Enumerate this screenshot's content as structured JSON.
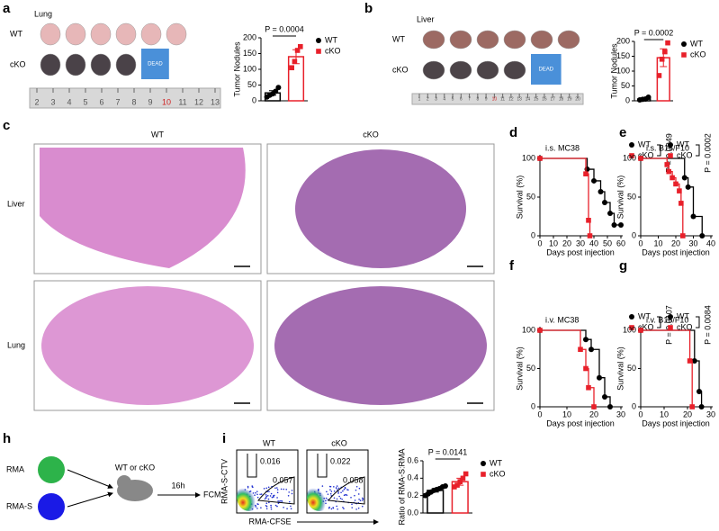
{
  "panel_labels": [
    "a",
    "b",
    "c",
    "d",
    "e",
    "f",
    "g",
    "h",
    "i"
  ],
  "photo_a": {
    "tissue": "Lung",
    "rows": [
      "WT",
      "cKO"
    ],
    "dead": "DEAD",
    "ruler": [
      "2",
      "3",
      "4",
      "5",
      "6",
      "7",
      "8",
      "9",
      "10",
      "11",
      "12",
      "13"
    ]
  },
  "photo_b": {
    "tissue": "Liver",
    "rows": [
      "WT",
      "cKO"
    ],
    "dead": "DEAD",
    "ruler": [
      "1",
      "2",
      "3",
      "4",
      "5",
      "6",
      "7",
      "8",
      "9",
      "10",
      "11",
      "12",
      "13",
      "14",
      "15",
      "16",
      "17",
      "18",
      "19",
      "20"
    ]
  },
  "histology": {
    "columns": [
      "WT",
      "cKO"
    ],
    "rows": [
      "Liver",
      "Lung"
    ]
  },
  "scheme": {
    "cells": [
      "RMA",
      "RMA-S"
    ],
    "mouse": "WT or cKO",
    "time": "16h",
    "readout": "FCM"
  },
  "flow": {
    "ylabel": "RMA-S-CTV",
    "xlabel": "RMA-CFSE",
    "panels": [
      {
        "title": "WT",
        "gates": [
          "0.016",
          "0.057"
        ]
      },
      {
        "title": "cKO",
        "gates": [
          "0.022",
          "0.058"
        ]
      }
    ]
  },
  "chart_data": [
    {
      "type": "bar",
      "ylabel": "Tumor Nodules",
      "annotation": "P = 0.0004",
      "ylim": [
        0,
        200
      ],
      "yticks": [
        0,
        50,
        100,
        150,
        200
      ],
      "series": [
        {
          "name": "WT",
          "color": "#000000",
          "marker": "circle",
          "values": [
            25
          ],
          "error": [
            7
          ],
          "points": [
            12,
            18,
            22,
            30,
            42
          ]
        },
        {
          "name": "cKO",
          "color": "#e8202a",
          "marker": "square",
          "values": [
            140
          ],
          "error": [
            22
          ],
          "points": [
            105,
            125,
            160,
            172
          ]
        }
      ]
    },
    {
      "type": "bar",
      "ylabel": "Tumor Nodules",
      "annotation": "P = 0.0002",
      "ylim": [
        0,
        200
      ],
      "yticks": [
        0,
        50,
        100,
        150,
        200
      ],
      "series": [
        {
          "name": "WT",
          "color": "#000000",
          "marker": "circle",
          "values": [
            6
          ],
          "error": [
            3
          ],
          "points": [
            3,
            5,
            6,
            12
          ]
        },
        {
          "name": "cKO",
          "color": "#e8202a",
          "marker": "square",
          "values": [
            145
          ],
          "error": [
            30
          ],
          "points": [
            85,
            140,
            165,
            195
          ]
        }
      ]
    },
    {
      "type": "survival",
      "title": "i.s. MC38",
      "xlabel": "Days post injection",
      "ylabel": "Survival (%)",
      "annotation": "P = 0.0049",
      "xlim": [
        0,
        60
      ],
      "xticks": [
        0,
        10,
        20,
        30,
        40,
        50,
        60
      ],
      "ylim": [
        0,
        100
      ],
      "yticks": [
        0,
        50,
        100
      ],
      "series": [
        {
          "name": "WT",
          "color": "#000000",
          "marker": "circle",
          "x": [
            0,
            35,
            40,
            45,
            48,
            52,
            55,
            60
          ],
          "values": [
            100,
            86,
            71,
            57,
            43,
            29,
            14,
            14
          ]
        },
        {
          "name": "cKO",
          "color": "#e8202a",
          "marker": "square",
          "x": [
            0,
            34,
            36,
            37
          ],
          "values": [
            100,
            80,
            20,
            0
          ]
        }
      ]
    },
    {
      "type": "survival",
      "title": "i.s. B16/F10",
      "xlabel": "Days post injection",
      "ylabel": "Survival (%)",
      "annotation": "P = 0.0002",
      "xlim": [
        0,
        40
      ],
      "xticks": [
        0,
        10,
        20,
        30,
        40
      ],
      "ylim": [
        0,
        100
      ],
      "yticks": [
        0,
        50,
        100
      ],
      "series": [
        {
          "name": "WT",
          "color": "#000000",
          "marker": "circle",
          "x": [
            0,
            25,
            27,
            30,
            35
          ],
          "values": [
            100,
            75,
            63,
            25,
            0
          ]
        },
        {
          "name": "cKO",
          "color": "#e8202a",
          "marker": "square",
          "x": [
            0,
            15,
            16,
            18,
            20,
            22,
            23,
            24
          ],
          "values": [
            100,
            92,
            83,
            75,
            67,
            58,
            42,
            0
          ]
        }
      ]
    },
    {
      "type": "survival",
      "title": "i.v. MC38",
      "xlabel": "Days post injection",
      "ylabel": "Survival (%)",
      "annotation": "P = 0.0107",
      "xlim": [
        0,
        30
      ],
      "xticks": [
        0,
        10,
        20,
        30
      ],
      "ylim": [
        0,
        100
      ],
      "yticks": [
        0,
        50,
        100
      ],
      "series": [
        {
          "name": "WT",
          "color": "#000000",
          "marker": "circle",
          "x": [
            0,
            17,
            19,
            22,
            24,
            26
          ],
          "values": [
            100,
            88,
            75,
            38,
            13,
            0
          ]
        },
        {
          "name": "cKO",
          "color": "#e8202a",
          "marker": "square",
          "x": [
            0,
            15,
            17,
            18,
            20
          ],
          "values": [
            100,
            75,
            50,
            25,
            0
          ]
        }
      ]
    },
    {
      "type": "survival",
      "title": "i.v. B16/F10",
      "xlabel": "Days post injection",
      "ylabel": "Survival (%)",
      "annotation": "P = 0.0084",
      "xlim": [
        0,
        30
      ],
      "xticks": [
        0,
        10,
        20,
        30
      ],
      "ylim": [
        0,
        100
      ],
      "yticks": [
        0,
        50,
        100
      ],
      "series": [
        {
          "name": "WT",
          "color": "#000000",
          "marker": "circle",
          "x": [
            0,
            23,
            25,
            26
          ],
          "values": [
            100,
            60,
            20,
            0
          ]
        },
        {
          "name": "cKO",
          "color": "#e8202a",
          "marker": "square",
          "x": [
            0,
            21,
            22
          ],
          "values": [
            100,
            60,
            0
          ]
        }
      ]
    },
    {
      "type": "bar",
      "ylabel": "Ratio of RMA-S:RMA",
      "annotation": "P = 0.0141",
      "ylim": [
        0,
        0.6
      ],
      "yticks": [
        {
          "value": 0,
          "label": "0.0"
        },
        0.2,
        0.4,
        0.6
      ],
      "series": [
        {
          "name": "WT",
          "color": "#000000",
          "marker": "circle",
          "values": [
            0.26
          ],
          "error": [
            0.02
          ],
          "points": [
            0.2,
            0.22,
            0.24,
            0.26,
            0.27,
            0.28,
            0.3,
            0.31
          ]
        },
        {
          "name": "cKO",
          "color": "#e8202a",
          "marker": "square",
          "values": [
            0.36
          ],
          "error": [
            0.04
          ],
          "points": [
            0.3,
            0.32,
            0.36,
            0.4,
            0.45
          ]
        }
      ]
    }
  ]
}
